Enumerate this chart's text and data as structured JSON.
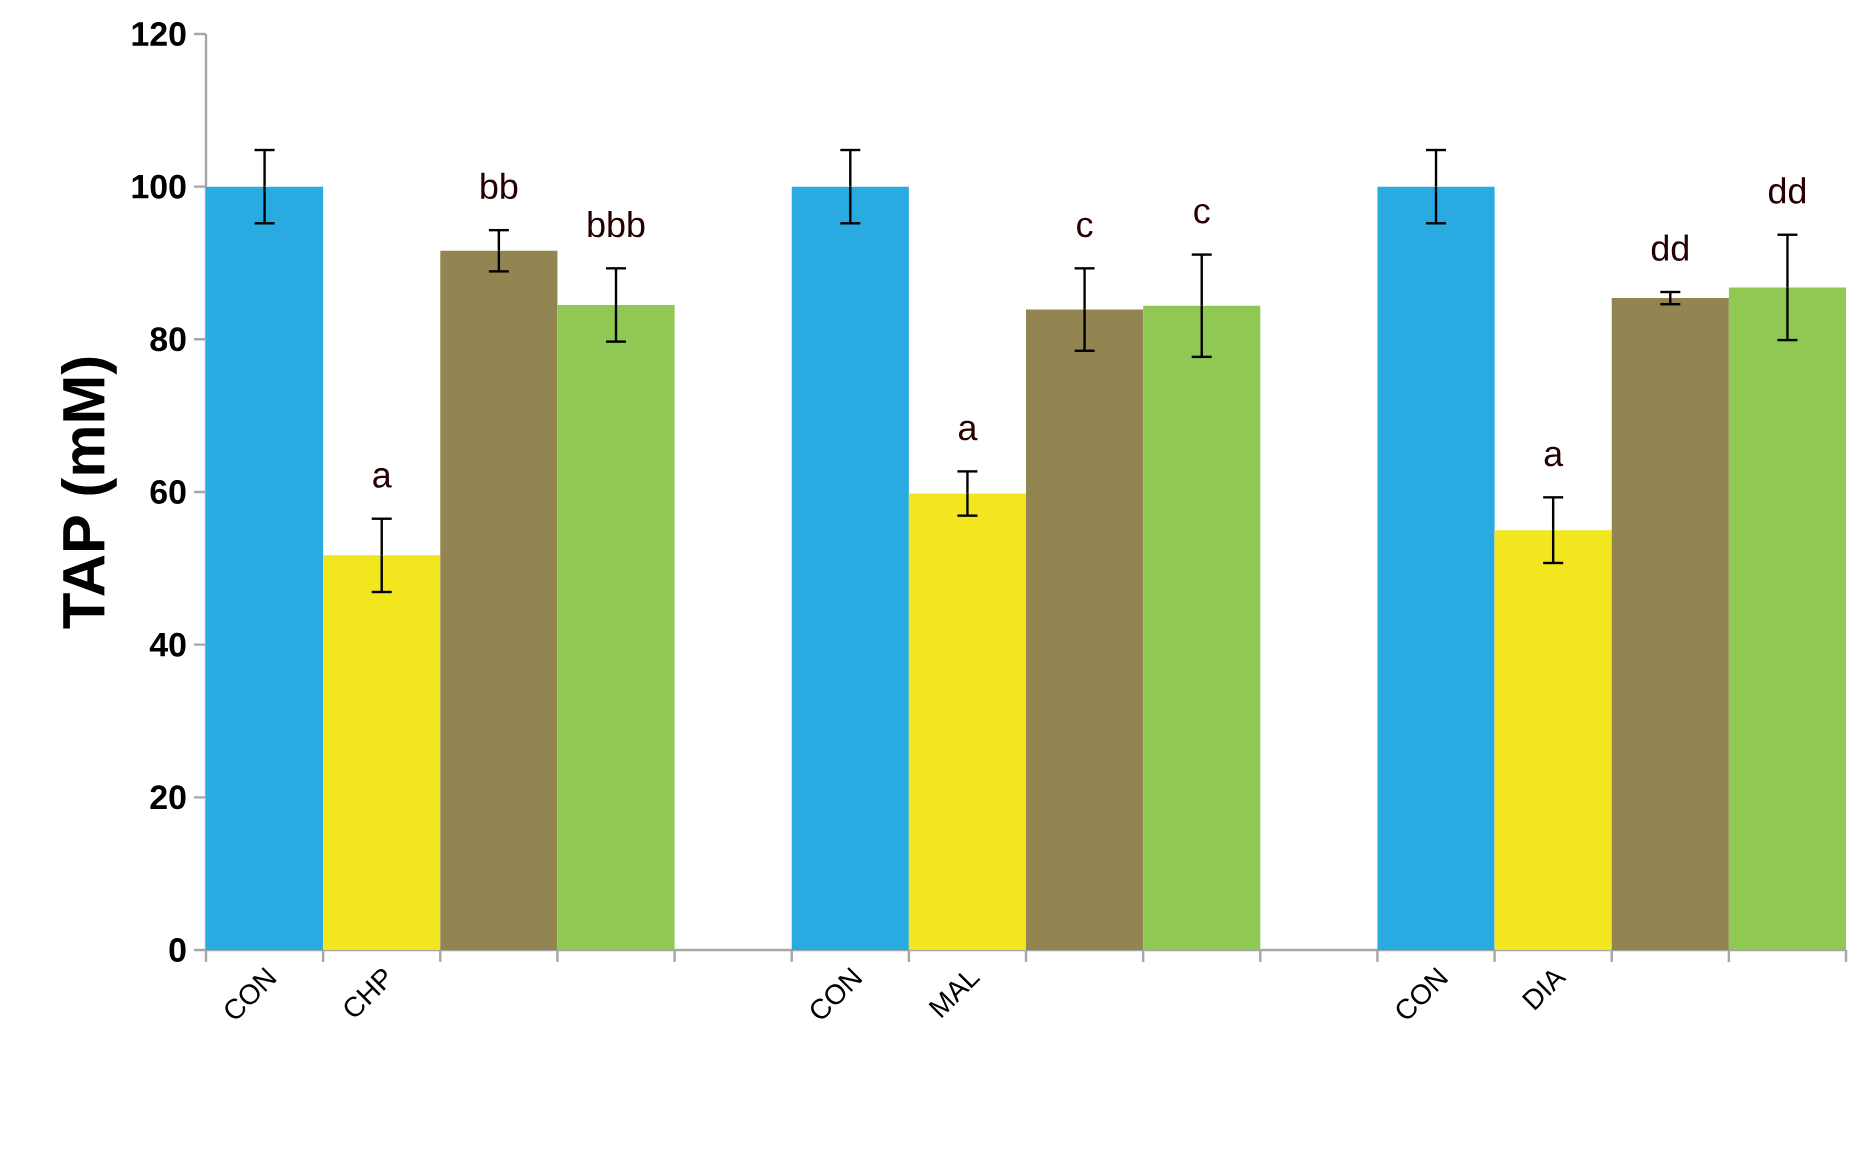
{
  "chart_data": {
    "type": "bar",
    "ylabel": "TAP (mM)",
    "categories": [
      "CON",
      "CHP",
      null,
      null,
      null,
      "CON",
      "MAL",
      null,
      null,
      null,
      "CON",
      "DIA",
      null,
      null
    ],
    "values": [
      100,
      51.7,
      91.6,
      84.5,
      null,
      100,
      59.8,
      83.9,
      84.4,
      null,
      100,
      55.0,
      85.4,
      86.8
    ],
    "errors": [
      4.8,
      4.8,
      2.7,
      4.8,
      null,
      4.8,
      2.9,
      5.4,
      6.7,
      null,
      4.8,
      4.3,
      0.8,
      6.9
    ],
    "colors": [
      "#29abe2",
      "#f2e71e",
      "#938552",
      "#8fc852",
      null,
      "#29abe2",
      "#f2e71e",
      "#938552",
      "#8fc852",
      null,
      "#29abe2",
      "#f2e71e",
      "#938552",
      "#8fc852"
    ],
    "value_labels": [
      null,
      "a",
      "bb",
      "bbb",
      null,
      null,
      "a",
      "c",
      "c",
      null,
      null,
      "a",
      "dd",
      "dd"
    ],
    "ylim": [
      0,
      120
    ],
    "yticks": [
      0,
      20,
      40,
      60,
      80,
      100,
      120
    ]
  }
}
